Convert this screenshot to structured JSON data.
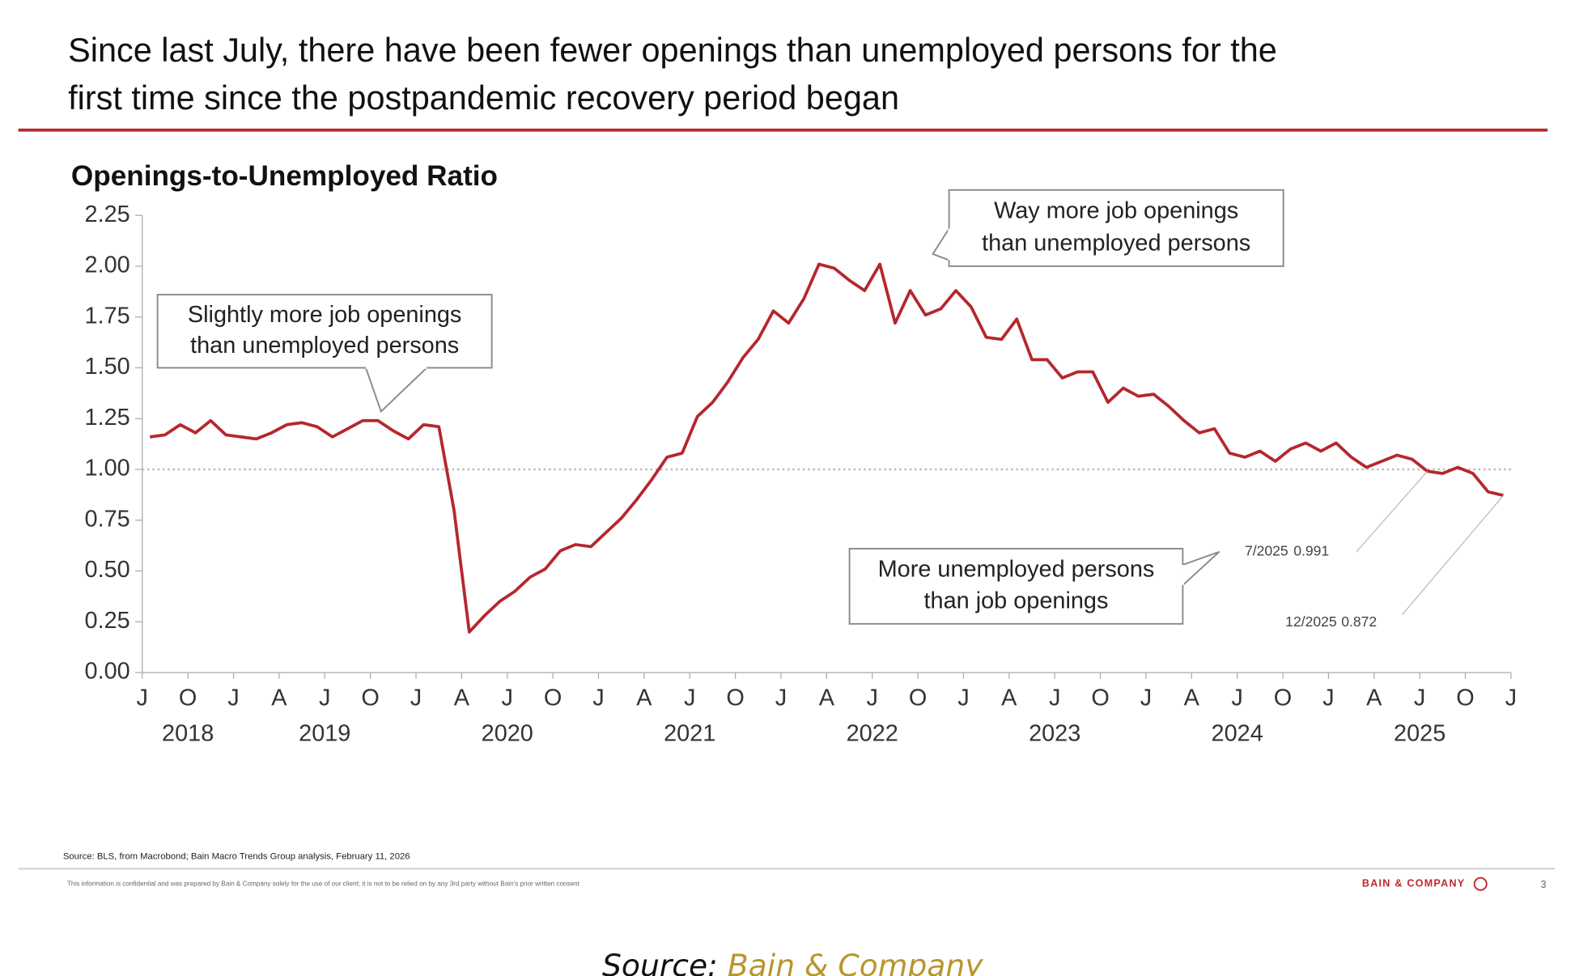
{
  "chart_data": {
    "type": "line",
    "title_lines": [
      "Since last July, there have been fewer openings than unemployed persons for the",
      "first time since the postpandemic recovery period began"
    ],
    "subtitle": "Openings-to-Unemployed Ratio",
    "categories": [
      "J",
      null,
      null,
      "O",
      null,
      null,
      "J",
      null,
      null,
      "A",
      null,
      null,
      "J",
      null,
      null,
      "O",
      null,
      null,
      "J",
      null,
      null,
      "A",
      null,
      null,
      "J",
      null,
      null,
      "O",
      null,
      null,
      "J",
      null,
      null,
      "A",
      null,
      null,
      "J",
      null,
      null,
      "O",
      null,
      null,
      "J",
      null,
      null,
      "A",
      null,
      null,
      "J",
      null,
      null,
      "O",
      null,
      null,
      "J",
      null,
      null,
      "A",
      null,
      null,
      "J",
      null,
      null,
      "O",
      null,
      null,
      "J",
      null,
      null,
      "A",
      null,
      null,
      "J",
      null,
      null,
      "O",
      null,
      null,
      "J",
      null,
      null,
      "A",
      null,
      null,
      "J",
      null,
      null,
      "O",
      null,
      null,
      "J"
    ],
    "year_labels": [
      "2018",
      "2019",
      "2020",
      "2021",
      "2022",
      "2023",
      "2024",
      "2025"
    ],
    "series": [
      {
        "name": "Openings-to-Unemployed Ratio",
        "color": "#b5272d",
        "values": [
          1.16,
          1.17,
          1.22,
          1.18,
          1.24,
          1.17,
          1.16,
          1.15,
          1.18,
          1.22,
          1.23,
          1.21,
          1.16,
          1.2,
          1.24,
          1.24,
          1.19,
          1.15,
          1.22,
          1.21,
          0.8,
          0.2,
          0.28,
          0.35,
          0.4,
          0.47,
          0.51,
          0.6,
          0.63,
          0.62,
          0.69,
          0.76,
          0.85,
          0.95,
          1.06,
          1.08,
          1.26,
          1.33,
          1.43,
          1.55,
          1.64,
          1.78,
          1.72,
          1.84,
          2.01,
          1.99,
          1.93,
          1.88,
          2.01,
          1.72,
          1.88,
          1.76,
          1.79,
          1.88,
          1.8,
          1.65,
          1.64,
          1.74,
          1.54,
          1.54,
          1.45,
          1.48,
          1.48,
          1.33,
          1.4,
          1.36,
          1.37,
          1.31,
          1.24,
          1.18,
          1.2,
          1.08,
          1.06,
          1.09,
          1.04,
          1.1,
          1.13,
          1.09,
          1.13,
          1.06,
          1.01,
          1.04,
          1.07,
          1.05,
          0.991,
          0.98,
          1.01,
          0.98,
          0.89,
          0.872,
          null
        ]
      }
    ],
    "ylim": [
      0,
      2.25
    ],
    "yticks": [
      {
        "value": 0,
        "label": "0.00"
      },
      {
        "value": 0.25,
        "label": "0.25"
      },
      {
        "value": 0.5,
        "label": "0.50"
      },
      {
        "value": 0.75,
        "label": "0.75"
      },
      {
        "value": 1,
        "label": "1.00"
      },
      {
        "value": 1.25,
        "label": "1.25"
      },
      {
        "value": 1.5,
        "label": "1.50"
      },
      {
        "value": 1.75,
        "label": "1.75"
      },
      {
        "value": 2,
        "label": "2.00"
      },
      {
        "value": 2.25,
        "label": "2.25"
      }
    ],
    "reference_line": 1,
    "annotations": [
      {
        "lines": [
          "Slightly more job openings",
          "than unemployed persons"
        ]
      },
      {
        "lines": [
          "Way more job openings",
          "than unemployed persons"
        ]
      },
      {
        "lines": [
          "More unemployed persons",
          "than job openings"
        ]
      }
    ],
    "point_labels": [
      {
        "date": "7/2025",
        "value": 0.991
      },
      {
        "date": "12/2025",
        "value": 0.872
      }
    ],
    "source_note": "Source: BLS, from Macrobond; Bain Macro Trends Group analysis, February 11, 2026",
    "confidential_note": "This information is confidential and was prepared by Bain & Company solely for the use of our client; it is not to be relied on by any 3rd party without Bain's prior written consent",
    "brand": "BAIN & COMPANY",
    "page_number": "3",
    "caption": {
      "prefix": "Source:",
      "link": "Bain & Company"
    }
  }
}
